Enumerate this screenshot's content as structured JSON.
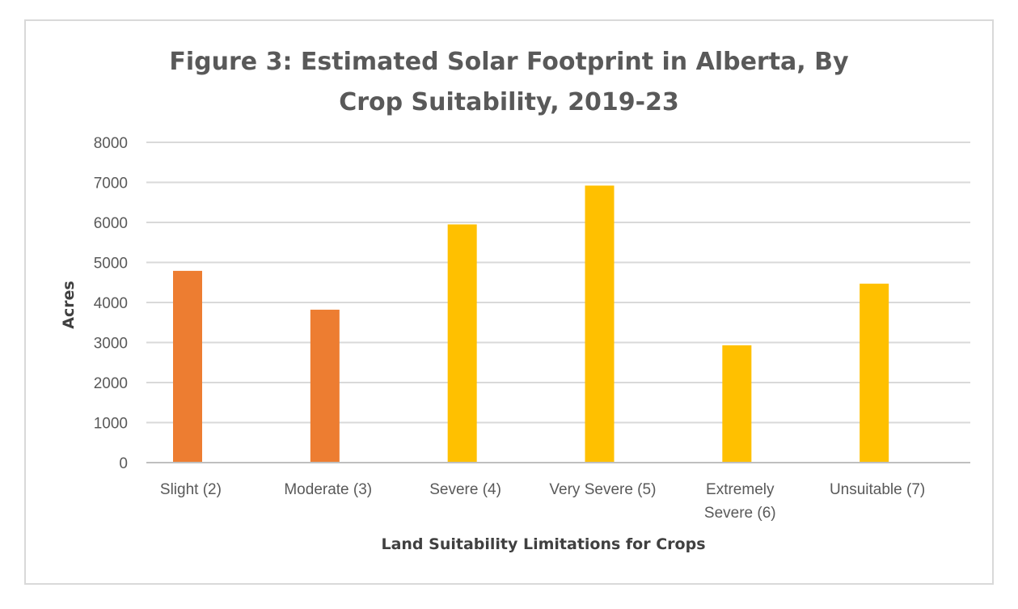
{
  "chart_data": {
    "type": "bar",
    "title": "Figure 3: Estimated Solar Footprint in Alberta, By Crop Suitability, 2019-23",
    "xlabel": "Land Suitability Limitations for Crops",
    "ylabel": "Acres",
    "ylim": [
      0,
      8000
    ],
    "yticks": [
      0,
      1000,
      2000,
      3000,
      4000,
      5000,
      6000,
      7000,
      8000
    ],
    "grid": true,
    "categories": [
      [
        "Slight (2)"
      ],
      [
        "Moderate (3)"
      ],
      [
        "Severe (4)"
      ],
      [
        "Very Severe (5)"
      ],
      [
        "Extremely",
        "Severe (6)"
      ],
      [
        "Unsuitable (7)"
      ]
    ],
    "values": [
      4790,
      3820,
      5950,
      6920,
      2930,
      4470
    ],
    "colors": [
      "#ed7d31",
      "#ed7d31",
      "#ffc000",
      "#ffc000",
      "#ffc000",
      "#ffc000"
    ],
    "gridline_color": "#d9d9d9",
    "axis_color": "#bfbfbf"
  }
}
